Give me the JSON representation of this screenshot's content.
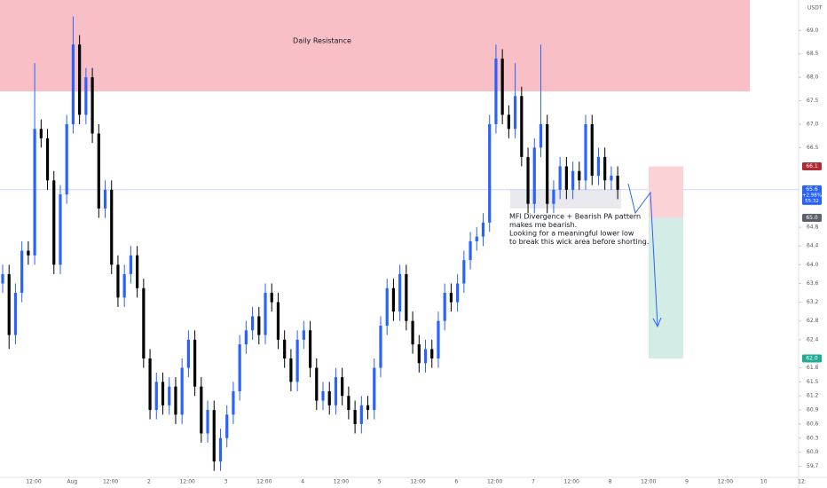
{
  "chart_data": {
    "type": "candlestick",
    "currency": "USDT",
    "ylim": [
      59.5,
      69.65
    ],
    "yticks": [
      {
        "value": 69,
        "label": "69.0"
      },
      68.5,
      {
        "value": 68,
        "label": "68.0"
      },
      67.5,
      {
        "value": 67,
        "label": "67.0"
      },
      66.5,
      64.8,
      64.4,
      {
        "value": 64,
        "label": "64.0"
      },
      63.6,
      63.2,
      62.8,
      62.4,
      61.8,
      61.5,
      61.2,
      60.9,
      60.6,
      60.3,
      {
        "value": 60,
        "label": "60.0"
      },
      59.7
    ],
    "xlabels": [
      "12:00",
      "Aug",
      "12:00",
      "2",
      "12:00",
      "3",
      "12:00",
      "4",
      "12:00",
      "5",
      "12:00",
      "6",
      "12:00",
      "7",
      "12:00",
      "8",
      "12:00",
      "9",
      "12:00",
      "10",
      "12:"
    ],
    "up_color": "#2962ff",
    "down_color": "#000000",
    "candles": [
      [
        63.6,
        64.0,
        63.4,
        63.8
      ],
      [
        63.8,
        64.0,
        62.2,
        62.5
      ],
      [
        62.5,
        63.6,
        62.3,
        63.4
      ],
      [
        63.4,
        64.5,
        63.2,
        64.3
      ],
      [
        64.3,
        64.5,
        64.0,
        64.2
      ],
      [
        64.2,
        68.3,
        64.0,
        66.9
      ],
      [
        66.9,
        67.1,
        66.5,
        66.7
      ],
      [
        66.7,
        66.9,
        65.6,
        65.8
      ],
      [
        65.8,
        66.0,
        63.8,
        64.0
      ],
      [
        64.0,
        65.7,
        63.8,
        65.5
      ],
      [
        65.5,
        67.2,
        65.3,
        67.0
      ],
      [
        67.0,
        69.3,
        66.8,
        68.7
      ],
      [
        68.7,
        68.9,
        67.0,
        67.2
      ],
      [
        67.2,
        68.2,
        67.0,
        68.0
      ],
      [
        68.0,
        68.2,
        66.6,
        66.8
      ],
      [
        66.8,
        67.0,
        65.0,
        65.2
      ],
      [
        65.2,
        65.8,
        65.0,
        65.6
      ],
      [
        65.6,
        65.8,
        63.8,
        64.0
      ],
      [
        64.0,
        64.2,
        63.1,
        63.3
      ],
      [
        63.3,
        64.0,
        63.1,
        63.8
      ],
      [
        63.8,
        64.4,
        63.6,
        64.2
      ],
      [
        64.2,
        64.4,
        63.3,
        63.5
      ],
      [
        63.5,
        63.7,
        61.8,
        62.0
      ],
      [
        62.0,
        62.2,
        60.7,
        60.9
      ],
      [
        60.9,
        61.7,
        60.7,
        61.5
      ],
      [
        61.5,
        61.7,
        60.8,
        61.0
      ],
      [
        61.0,
        61.6,
        60.8,
        61.4
      ],
      [
        61.4,
        61.6,
        60.6,
        60.8
      ],
      [
        60.8,
        62.0,
        60.6,
        61.8
      ],
      [
        61.8,
        62.6,
        61.6,
        62.4
      ],
      [
        62.4,
        62.6,
        61.2,
        61.4
      ],
      [
        61.4,
        61.6,
        60.2,
        60.4
      ],
      [
        60.4,
        61.1,
        60.2,
        60.9
      ],
      [
        60.9,
        61.1,
        59.6,
        59.8
      ],
      [
        59.8,
        60.5,
        59.6,
        60.3
      ],
      [
        60.3,
        61.0,
        60.1,
        60.8
      ],
      [
        60.8,
        61.5,
        60.6,
        61.3
      ],
      [
        61.3,
        62.5,
        61.1,
        62.3
      ],
      [
        62.3,
        62.8,
        62.1,
        62.6
      ],
      [
        62.6,
        63.1,
        62.4,
        62.9
      ],
      [
        62.9,
        63.1,
        62.3,
        62.5
      ],
      [
        62.5,
        63.6,
        62.3,
        63.4
      ],
      [
        63.4,
        63.6,
        63.0,
        63.2
      ],
      [
        63.2,
        63.4,
        62.2,
        62.4
      ],
      [
        62.4,
        62.6,
        61.8,
        62.0
      ],
      [
        62.0,
        62.2,
        61.3,
        61.5
      ],
      [
        61.5,
        62.6,
        61.3,
        62.4
      ],
      [
        62.4,
        62.8,
        62.2,
        62.6
      ],
      [
        62.6,
        62.8,
        61.6,
        61.8
      ],
      [
        61.8,
        62.0,
        60.9,
        61.1
      ],
      [
        61.1,
        61.5,
        60.9,
        61.3
      ],
      [
        61.3,
        61.5,
        60.8,
        61.0
      ],
      [
        61.0,
        61.8,
        60.8,
        61.6
      ],
      [
        61.6,
        61.8,
        61.0,
        61.2
      ],
      [
        61.2,
        61.4,
        60.7,
        60.9
      ],
      [
        60.9,
        61.1,
        60.4,
        60.6
      ],
      [
        60.6,
        61.2,
        60.4,
        61.0
      ],
      [
        61.0,
        61.2,
        60.7,
        60.9
      ],
      [
        60.9,
        62.0,
        60.7,
        61.8
      ],
      [
        61.8,
        62.9,
        61.6,
        62.7
      ],
      [
        62.7,
        63.7,
        62.5,
        63.5
      ],
      [
        63.5,
        63.7,
        62.8,
        63.0
      ],
      [
        63.0,
        64.0,
        62.8,
        63.8
      ],
      [
        63.8,
        64.0,
        62.6,
        62.8
      ],
      [
        62.8,
        63.0,
        62.1,
        62.3
      ],
      [
        62.3,
        62.5,
        61.7,
        61.9
      ],
      [
        61.9,
        62.4,
        61.7,
        62.2
      ],
      [
        62.2,
        62.4,
        61.8,
        62.0
      ],
      [
        62.0,
        63.0,
        61.8,
        62.8
      ],
      [
        62.8,
        63.6,
        62.6,
        63.4
      ],
      [
        63.4,
        63.6,
        63.0,
        63.2
      ],
      [
        63.2,
        63.8,
        63.0,
        63.6
      ],
      [
        63.6,
        64.3,
        63.4,
        64.1
      ],
      [
        64.1,
        64.7,
        63.9,
        64.5
      ],
      [
        64.5,
        64.8,
        64.3,
        64.6
      ],
      [
        64.6,
        65.1,
        64.4,
        64.9
      ],
      [
        64.9,
        67.2,
        64.7,
        67.0
      ],
      [
        67.0,
        68.7,
        66.8,
        68.4
      ],
      [
        68.4,
        68.6,
        67.0,
        67.2
      ],
      [
        67.2,
        67.4,
        66.7,
        66.9
      ],
      [
        66.9,
        68.3,
        66.7,
        67.6
      ],
      [
        67.6,
        67.8,
        66.1,
        66.3
      ],
      [
        66.3,
        66.5,
        65.1,
        65.3
      ],
      [
        65.3,
        66.7,
        65.1,
        66.5
      ],
      [
        66.5,
        68.7,
        66.3,
        67.0
      ],
      [
        67.0,
        67.2,
        65.1,
        65.3
      ],
      [
        65.3,
        65.8,
        65.1,
        65.6
      ],
      [
        65.6,
        66.3,
        65.4,
        66.1
      ],
      [
        66.1,
        66.3,
        65.4,
        65.6
      ],
      [
        65.6,
        66.2,
        65.4,
        66.0
      ],
      [
        66.0,
        66.2,
        65.6,
        65.8
      ],
      [
        65.8,
        67.2,
        65.6,
        67.0
      ],
      [
        67.0,
        67.2,
        65.7,
        65.9
      ],
      [
        65.9,
        66.5,
        65.7,
        66.3
      ],
      [
        66.3,
        66.5,
        65.6,
        65.8
      ],
      [
        65.8,
        66.1,
        65.6,
        65.9
      ],
      [
        65.9,
        66.1,
        65.4,
        65.6
      ]
    ],
    "resistance": {
      "label": "Daily Resistance",
      "bottom": 67.7,
      "color": "#f8c0c6"
    },
    "wick_area": {
      "top": 65.6,
      "bottom": 65.2,
      "color": "#e9e9ee"
    },
    "annotation": [
      "MFI Divergence + Bearish PA pattern",
      "makes me bearish.",
      "Looking for a meaningful lower low",
      "to break this wick area before shorting."
    ],
    "position": {
      "stop": 66.1,
      "entry": 65.0,
      "target": 62.0,
      "risk_color": "#fbd3d7",
      "reward_color": "#d3ece6"
    },
    "price_tags": [
      {
        "value": 66.1,
        "label": "66.1",
        "color": "#b22833"
      },
      {
        "value": 65.6,
        "label": "65.6",
        "change": "+2.98%",
        "timer": "55:32",
        "color": "#2962ff"
      },
      {
        "value": 65.0,
        "label": "65.0",
        "color": "#5d606b"
      },
      {
        "value": 62.0,
        "label": "62.0",
        "color": "#22ab94"
      }
    ]
  }
}
